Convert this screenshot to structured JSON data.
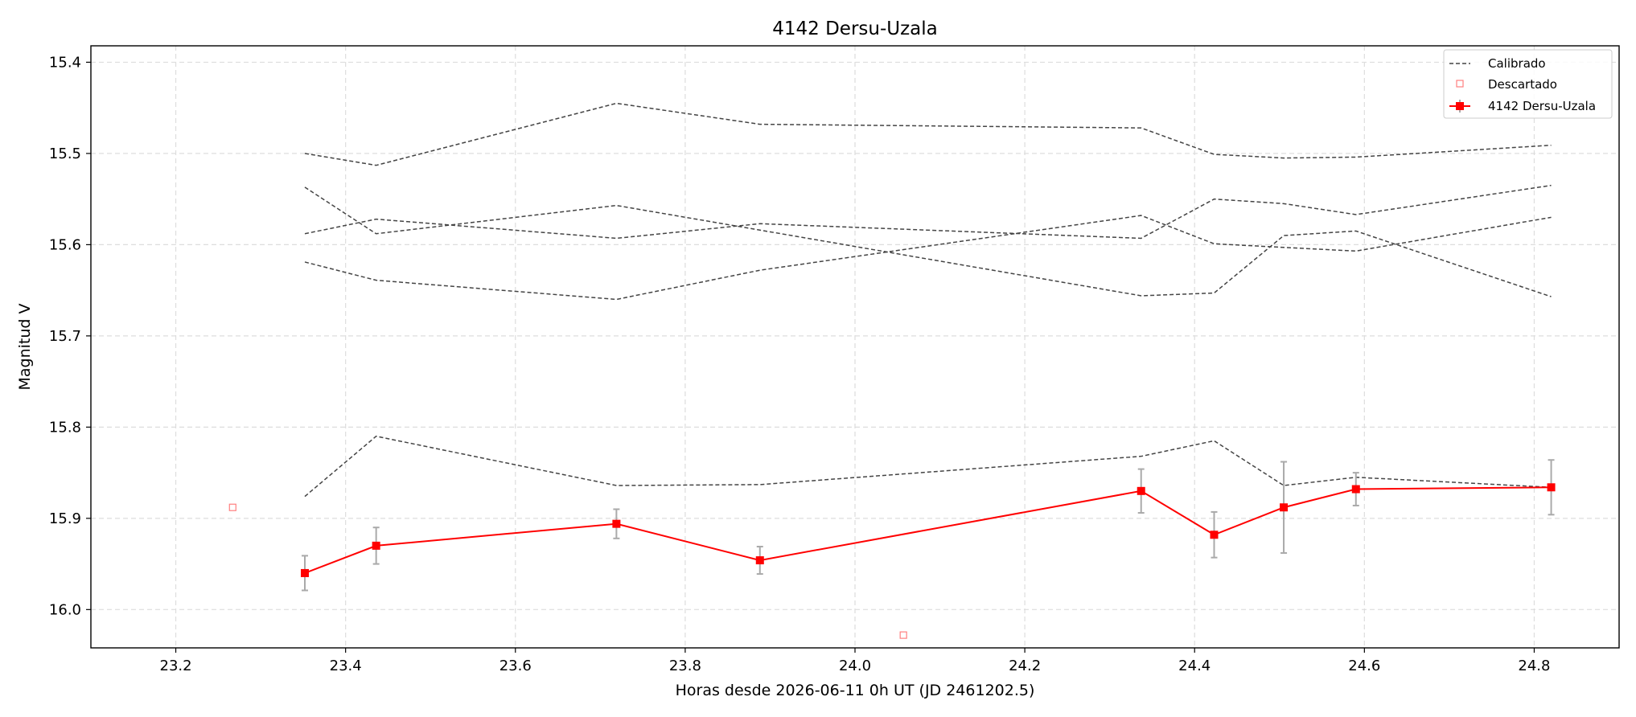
{
  "chart_data": {
    "type": "line",
    "title": "4142 Dersu-Uzala",
    "xlabel": "Horas desde 2026-06-11 0h UT (JD 2461202.5)",
    "ylabel": "Magnitud V",
    "xlim": [
      23.1,
      24.9
    ],
    "ylim": [
      16.042,
      15.382
    ],
    "y_inverted": true,
    "grid": true,
    "legend_position": "top-right",
    "x_ticks": [
      "23.2",
      "23.4",
      "23.6",
      "23.8",
      "24.0",
      "24.2",
      "24.4",
      "24.6",
      "24.8"
    ],
    "y_ticks": [
      "15.4",
      "15.5",
      "15.6",
      "15.7",
      "15.8",
      "15.9",
      "16.0"
    ],
    "legend": [
      "Calibrado",
      "Descartado",
      "4142 Dersu-Uzala"
    ],
    "calibrated_series": [
      {
        "x": [
          23.352,
          23.436,
          23.719,
          23.888,
          24.337,
          24.423,
          24.505,
          24.59,
          24.82
        ],
        "y": [
          15.5,
          15.513,
          15.445,
          15.468,
          15.472,
          15.501,
          15.505,
          15.504,
          15.491
        ]
      },
      {
        "x": [
          23.352,
          23.436,
          23.719,
          23.888,
          24.337,
          24.423,
          24.505,
          24.59,
          24.82
        ],
        "y": [
          15.537,
          15.588,
          15.557,
          15.584,
          15.656,
          15.653,
          15.59,
          15.585,
          15.657
        ]
      },
      {
        "x": [
          23.352,
          23.436,
          23.719,
          23.888,
          24.337,
          24.423,
          24.505,
          24.59,
          24.82
        ],
        "y": [
          15.588,
          15.572,
          15.593,
          15.577,
          15.593,
          15.55,
          15.555,
          15.567,
          15.535
        ]
      },
      {
        "x": [
          23.352,
          23.436,
          23.719,
          23.888,
          24.337,
          24.423,
          24.505,
          24.59,
          24.82
        ],
        "y": [
          15.619,
          15.639,
          15.66,
          15.628,
          15.568,
          15.599,
          15.603,
          15.607,
          15.57
        ]
      },
      {
        "x": [
          23.352,
          23.436,
          23.719,
          23.888,
          24.337,
          24.423,
          24.505,
          24.59,
          24.82
        ],
        "y": [
          15.876,
          15.81,
          15.864,
          15.863,
          15.832,
          15.815,
          15.864,
          15.855,
          15.866
        ]
      }
    ],
    "target_series": {
      "name": "4142 Dersu-Uzala",
      "x": [
        23.352,
        23.436,
        23.719,
        23.888,
        24.337,
        24.423,
        24.505,
        24.59,
        24.82
      ],
      "y": [
        15.96,
        15.93,
        15.906,
        15.946,
        15.87,
        15.918,
        15.888,
        15.868,
        15.866
      ],
      "yerr": [
        0.019,
        0.02,
        0.016,
        0.015,
        0.024,
        0.025,
        0.05,
        0.018,
        0.03
      ]
    },
    "discarded_points": {
      "x": [
        23.267,
        24.057
      ],
      "y": [
        15.888,
        16.028
      ]
    },
    "colors": {
      "calibrated": "#444444",
      "target": "#ff0000",
      "discarded": "#ff7f7f",
      "errorbar": "#aaaaaa",
      "grid": "#dddddd"
    }
  }
}
